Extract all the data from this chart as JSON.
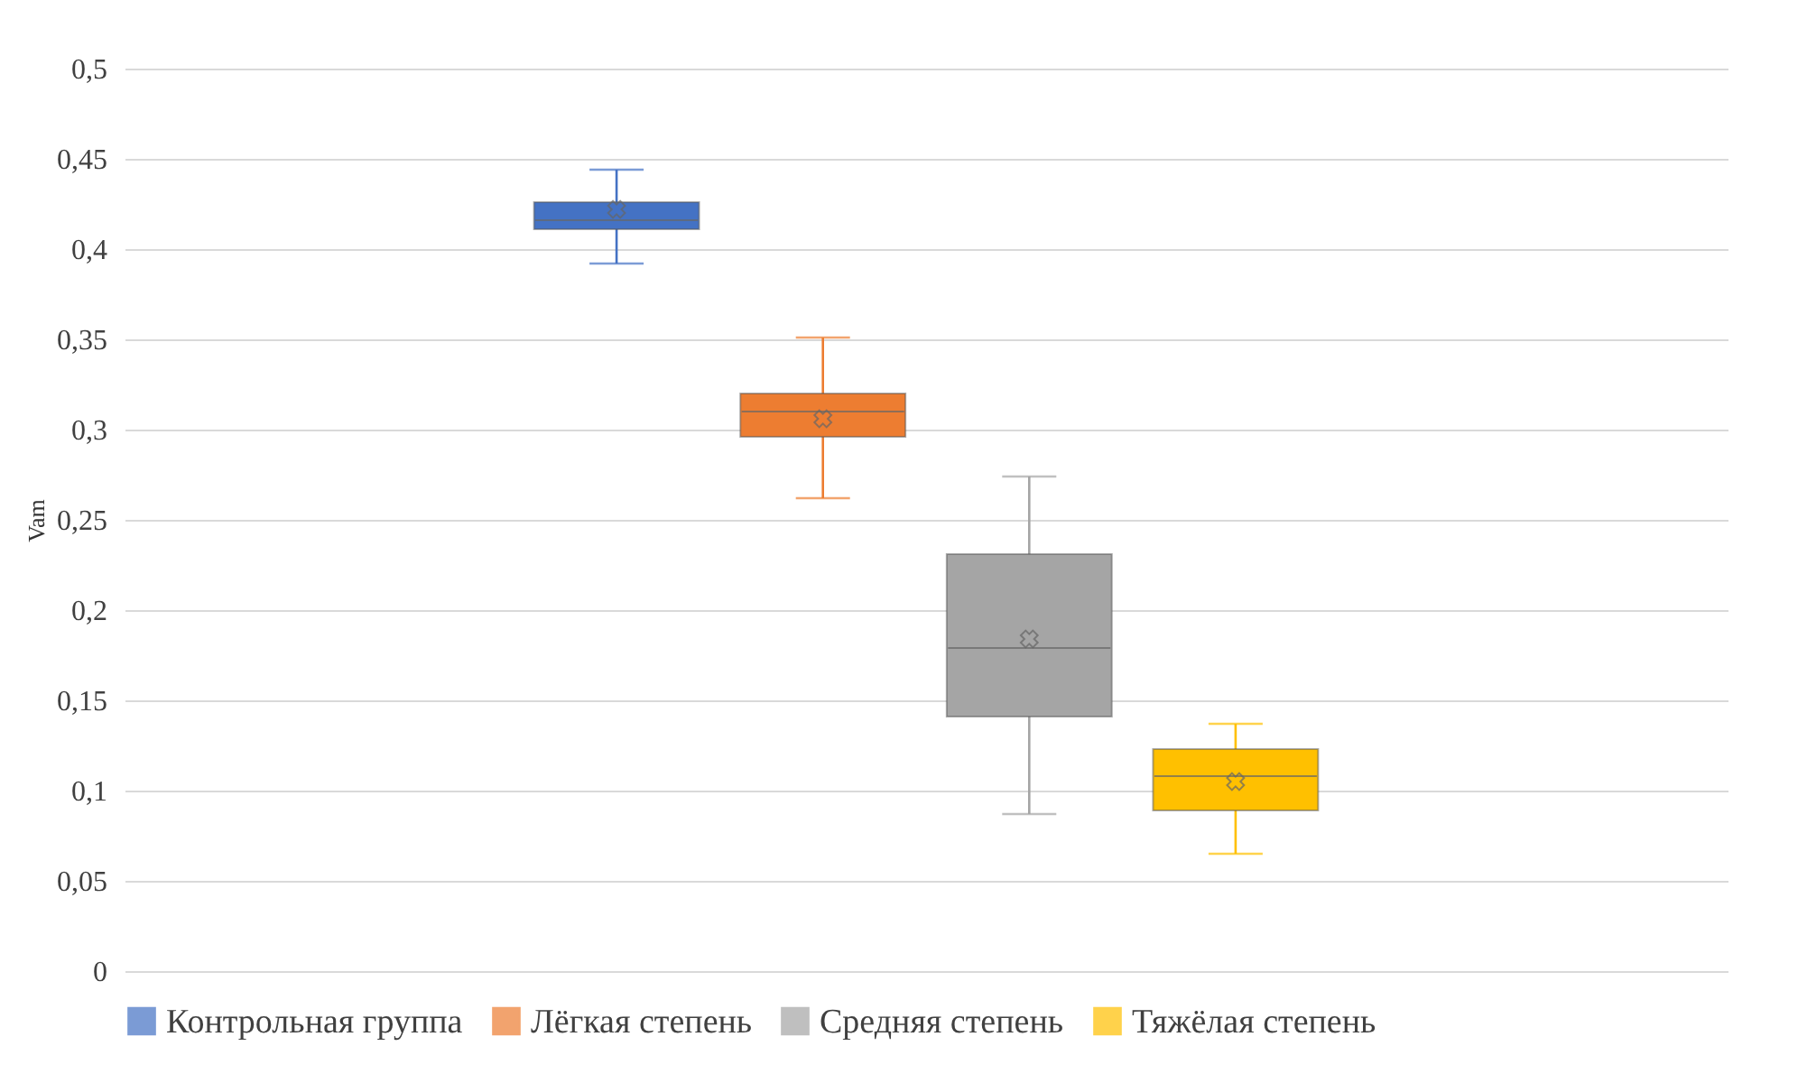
{
  "chart_data": {
    "type": "box",
    "ylabel": "Vam",
    "categories": [
      null
    ],
    "ylim": [
      0,
      0.5
    ],
    "yticks": [
      {
        "value": 0,
        "label": "0"
      },
      {
        "value": 0.05,
        "label": "0,05"
      },
      {
        "value": 0.1,
        "label": "0,1"
      },
      {
        "value": 0.15,
        "label": "0,15"
      },
      {
        "value": 0.2,
        "label": "0,2"
      },
      {
        "value": 0.25,
        "label": "0,25"
      },
      {
        "value": 0.3,
        "label": "0,3"
      },
      {
        "value": 0.35,
        "label": "0,35"
      },
      {
        "value": 0.4,
        "label": "0,4"
      },
      {
        "value": 0.45,
        "label": "0,45"
      },
      {
        "value": 0.5,
        "label": "0,5"
      }
    ],
    "grid": "y",
    "legend": "bottom",
    "tick_labels": "y",
    "series": [
      {
        "name": "Контрольная группа",
        "color": "#4472c4",
        "boxes": [
          {
            "low": 0.392,
            "q1": 0.411,
            "median": 0.416,
            "q3": 0.426,
            "high": 0.444,
            "mean": 0.422
          }
        ]
      },
      {
        "name": "Лёгкая степень",
        "color": "#ed7d31",
        "boxes": [
          {
            "low": 0.262,
            "q1": 0.296,
            "median": 0.31,
            "q3": 0.32,
            "high": 0.351,
            "mean": 0.306
          }
        ]
      },
      {
        "name": "Средняя степень",
        "color": "#a5a5a5",
        "boxes": [
          {
            "low": 0.087,
            "q1": 0.141,
            "median": 0.179,
            "q3": 0.231,
            "high": 0.274,
            "mean": 0.184
          }
        ]
      },
      {
        "name": "Тяжёлая степень",
        "color": "#ffc000",
        "boxes": [
          {
            "low": 0.065,
            "q1": 0.089,
            "median": 0.108,
            "q3": 0.123,
            "high": 0.137,
            "mean": 0.105
          }
        ]
      }
    ]
  }
}
